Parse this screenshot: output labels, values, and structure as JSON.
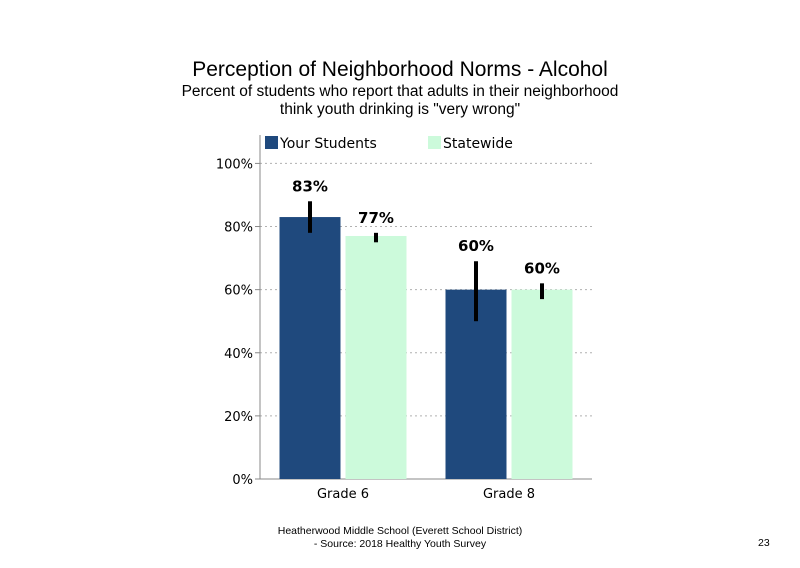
{
  "chart_data": {
    "type": "bar",
    "title": "Perception of Neighborhood Norms - Alcohol",
    "subtitle_lines": [
      "Percent of students who report that adults in their neighborhood",
      "think youth drinking is \"very wrong\""
    ],
    "categories": [
      "Grade 6",
      "Grade 8"
    ],
    "series": [
      {
        "name": "Your Students",
        "values": [
          83,
          60
        ],
        "labels": [
          "83%",
          "60%"
        ],
        "error": [
          [
            78,
            88
          ],
          [
            50,
            69
          ]
        ],
        "color": "#1f497d"
      },
      {
        "name": "Statewide",
        "values": [
          77,
          60
        ],
        "labels": [
          "77%",
          "60%"
        ],
        "error": [
          [
            75,
            78
          ],
          [
            57,
            62
          ]
        ],
        "color": "#ccfadb"
      }
    ],
    "ylim": [
      0,
      100
    ],
    "yticks": [
      0,
      20,
      40,
      60,
      80,
      100
    ],
    "ytick_labels": [
      "0%",
      "20%",
      "40%",
      "60%",
      "80%",
      "100%"
    ],
    "grid": "dotted horizontal",
    "legend": "top"
  },
  "footer_lines": [
    "Heatherwood Middle School (Everett School District)",
    "- Source: 2018 Healthy  Youth Survey"
  ],
  "page_number": "23"
}
